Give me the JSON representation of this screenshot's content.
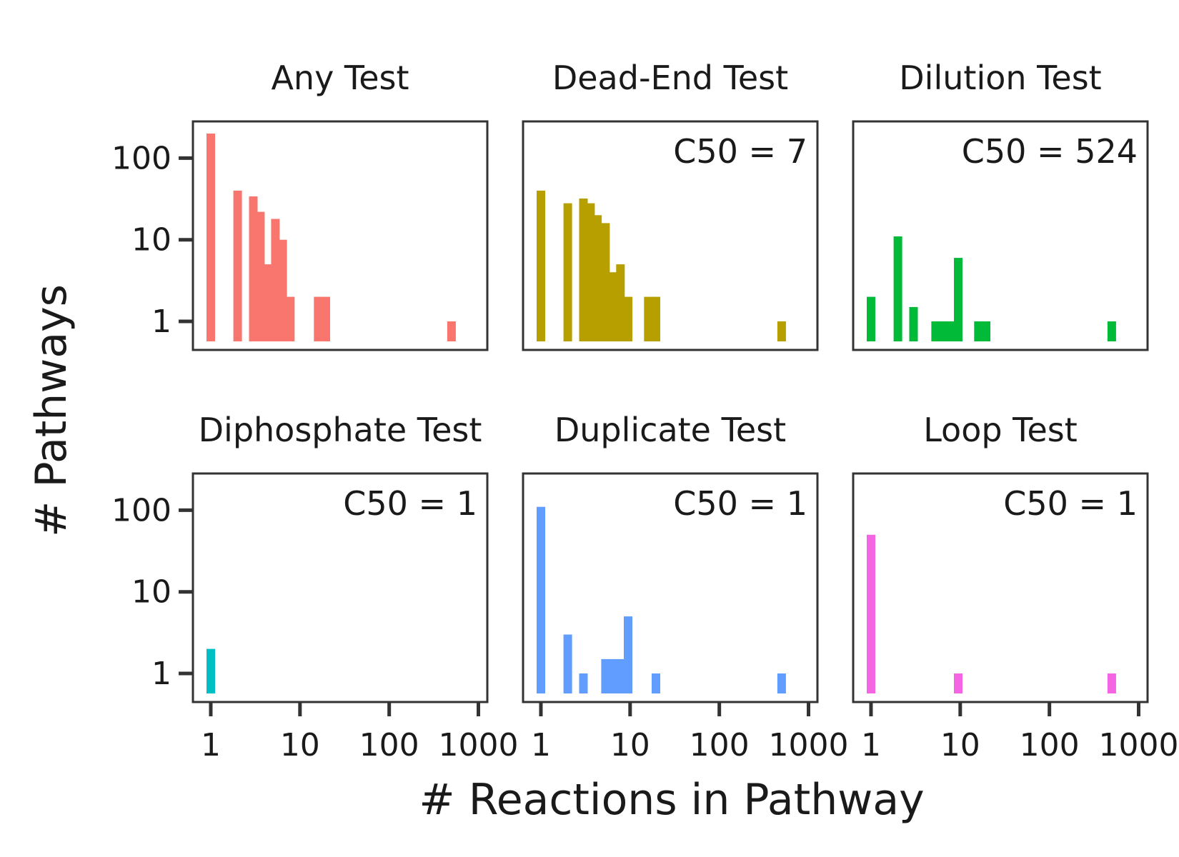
{
  "xlabel": "# Reactions in Pathway",
  "ylabel": "# Pathways",
  "x_ticks": [
    "1",
    "10",
    "100",
    "1000"
  ],
  "y_ticks": [
    "1",
    "10",
    "100"
  ],
  "chart_data": [
    {
      "type": "bar",
      "title": "Any Test",
      "annotation": "",
      "color": "#F8766D",
      "xscale": "log",
      "yscale": "log",
      "bars": [
        {
          "x": 1,
          "y": 200
        },
        {
          "x": 2,
          "y": 40
        },
        {
          "x": 3,
          "y": 34
        },
        {
          "x": 3.6,
          "y": 22
        },
        {
          "x": 4.3,
          "y": 5
        },
        {
          "x": 5.3,
          "y": 18
        },
        {
          "x": 6.4,
          "y": 10
        },
        {
          "x": 7.8,
          "y": 2
        },
        {
          "x": 16,
          "y": 2
        },
        {
          "x": 19.5,
          "y": 2
        },
        {
          "x": 500,
          "y": 1
        }
      ]
    },
    {
      "type": "bar",
      "title": "Dead-End Test",
      "annotation": "C50 = 7",
      "color": "#B79F00",
      "xscale": "log",
      "yscale": "log",
      "bars": [
        {
          "x": 1,
          "y": 40
        },
        {
          "x": 2,
          "y": 28
        },
        {
          "x": 3,
          "y": 32
        },
        {
          "x": 3.6,
          "y": 28
        },
        {
          "x": 4.3,
          "y": 20
        },
        {
          "x": 5.3,
          "y": 16
        },
        {
          "x": 6.4,
          "y": 4
        },
        {
          "x": 7.8,
          "y": 5
        },
        {
          "x": 9.5,
          "y": 2
        },
        {
          "x": 16,
          "y": 2
        },
        {
          "x": 19.5,
          "y": 2
        },
        {
          "x": 500,
          "y": 1
        }
      ]
    },
    {
      "type": "bar",
      "title": "Dilution Test",
      "annotation": "C50 = 524",
      "color": "#00BA38",
      "xscale": "log",
      "yscale": "log",
      "bars": [
        {
          "x": 1,
          "y": 2
        },
        {
          "x": 2,
          "y": 11
        },
        {
          "x": 3,
          "y": 1.5
        },
        {
          "x": 5.3,
          "y": 1
        },
        {
          "x": 6.4,
          "y": 1
        },
        {
          "x": 7.8,
          "y": 1
        },
        {
          "x": 9.5,
          "y": 6
        },
        {
          "x": 16,
          "y": 1
        },
        {
          "x": 19.5,
          "y": 1
        },
        {
          "x": 500,
          "y": 1
        }
      ]
    },
    {
      "type": "bar",
      "title": "Diphosphate Test",
      "annotation": "C50 = 1",
      "color": "#00BFC4",
      "xscale": "log",
      "yscale": "log",
      "bars": [
        {
          "x": 1,
          "y": 2
        }
      ]
    },
    {
      "type": "bar",
      "title": "Duplicate Test",
      "annotation": "C50 = 1",
      "color": "#619CFF",
      "xscale": "log",
      "yscale": "log",
      "bars": [
        {
          "x": 1,
          "y": 110
        },
        {
          "x": 2,
          "y": 3
        },
        {
          "x": 3,
          "y": 1
        },
        {
          "x": 5.3,
          "y": 1.5
        },
        {
          "x": 6.4,
          "y": 1.5
        },
        {
          "x": 7.8,
          "y": 1.5
        },
        {
          "x": 9.5,
          "y": 5
        },
        {
          "x": 19.5,
          "y": 1
        },
        {
          "x": 500,
          "y": 1
        }
      ]
    },
    {
      "type": "bar",
      "title": "Loop Test",
      "annotation": "C50 = 1",
      "color": "#F564E3",
      "xscale": "log",
      "yscale": "log",
      "bars": [
        {
          "x": 1,
          "y": 50
        },
        {
          "x": 9.5,
          "y": 1
        },
        {
          "x": 500,
          "y": 1
        }
      ]
    }
  ]
}
